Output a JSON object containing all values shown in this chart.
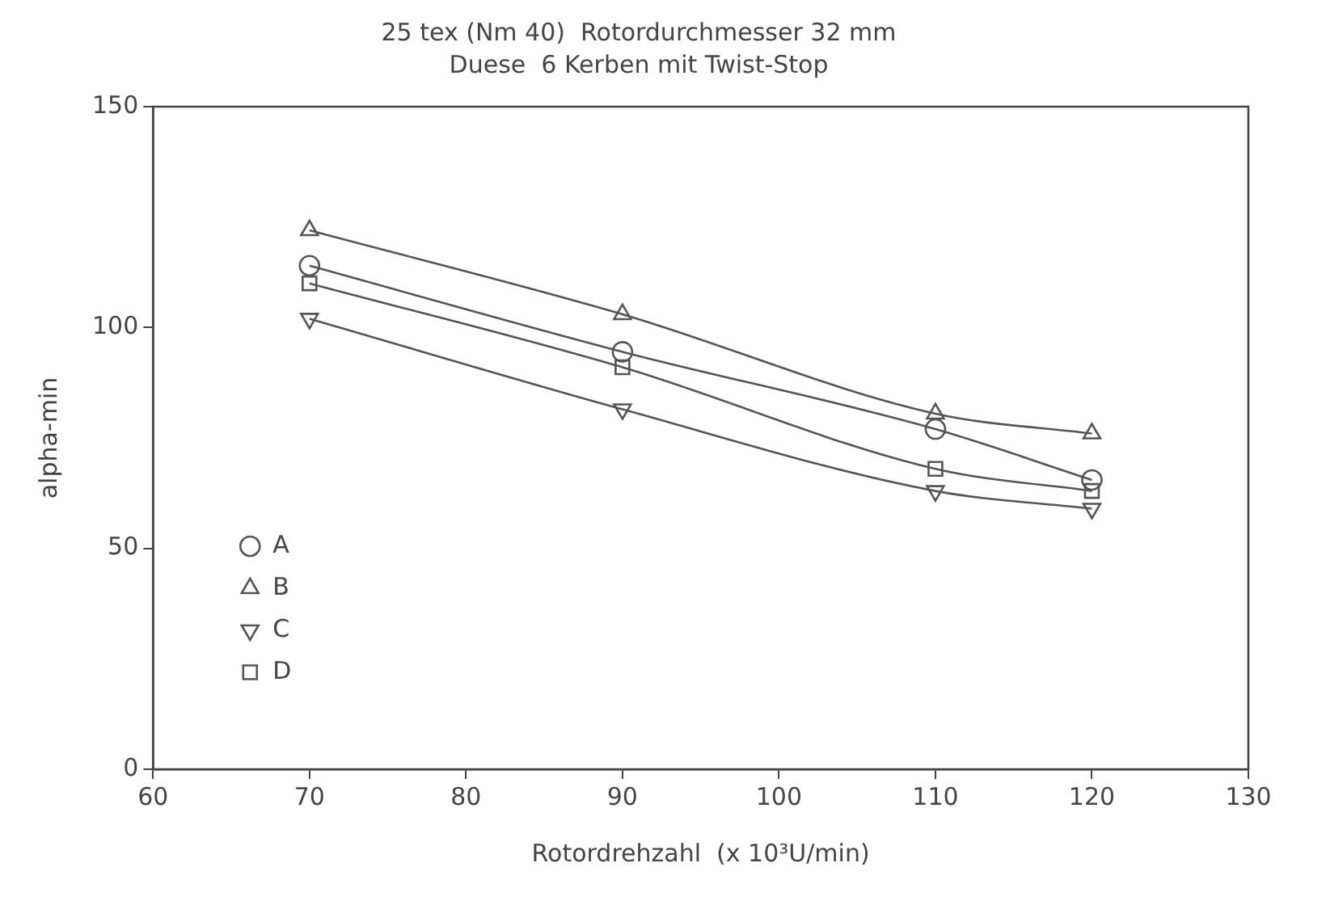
{
  "chart_data": {
    "type": "line",
    "title": "25 tex (Nm 40)  Rotordurchmesser 32 mm",
    "subtitle": "Duese  6 Kerben mit Twist-Stop",
    "xlabel": "Rotordrehzahl  (x 10³U/min)",
    "ylabel": "alpha-min",
    "x": [
      70,
      90,
      110,
      120
    ],
    "series": [
      {
        "name": "A",
        "color": "#555555",
        "marker": "circle",
        "values": [
          114,
          94.5,
          77,
          65.5
        ]
      },
      {
        "name": "B",
        "color": "#555555",
        "marker": "triangle",
        "values": [
          122,
          103,
          80.5,
          76
        ]
      },
      {
        "name": "C",
        "color": "#555555",
        "marker": "triangle_down",
        "values": [
          102,
          81.5,
          63,
          59
        ]
      },
      {
        "name": "D",
        "color": "#555555",
        "marker": "square",
        "values": [
          110,
          91,
          68,
          63
        ]
      }
    ],
    "xlim": [
      60,
      130
    ],
    "xticks": [
      60,
      70,
      80,
      90,
      100,
      110,
      120,
      130
    ],
    "ylim": [
      0,
      150
    ],
    "yticks": [
      0,
      50,
      100,
      150
    ],
    "grid": false,
    "legend": "bottom left",
    "line_style": "solid"
  }
}
